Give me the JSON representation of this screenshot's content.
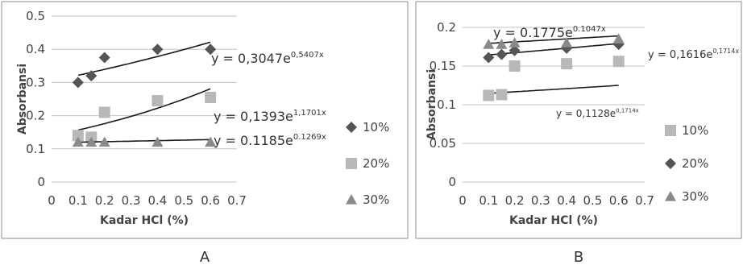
{
  "chart_data": [
    {
      "type": "scatter",
      "panel_label": "A",
      "xlabel": "Kadar HCl (%)",
      "ylabel": "Absorbansi",
      "xlim": [
        0,
        0.7
      ],
      "ylim": [
        0,
        0.5
      ],
      "x_ticks": [
        "0",
        "0.1",
        "0.2",
        "0.3",
        "0.4",
        "0.5",
        "0.6",
        "0.7"
      ],
      "y_ticks": [
        "0",
        "0.1",
        "0.2",
        "0.3",
        "0.4",
        "0.5"
      ],
      "grid": true,
      "legend_position": "right",
      "series": [
        {
          "name": "10%",
          "marker": "diamond",
          "color": "#555555",
          "x": [
            0.1,
            0.15,
            0.2,
            0.4,
            0.6
          ],
          "y": [
            0.3,
            0.32,
            0.375,
            0.4,
            0.4
          ],
          "trend": {
            "a": 0.3047,
            "b": 0.5407,
            "equation": "y = 0,3047e",
            "exponent": "0,5407x"
          }
        },
        {
          "name": "20%",
          "marker": "square",
          "color": "#b8b8b8",
          "x": [
            0.1,
            0.15,
            0.2,
            0.4,
            0.6
          ],
          "y": [
            0.14,
            0.135,
            0.21,
            0.245,
            0.255
          ],
          "trend": {
            "a": 0.1393,
            "b": 1.1701,
            "equation": "y = 0,1393e",
            "exponent": "1,1701x"
          }
        },
        {
          "name": "30%",
          "marker": "triangle",
          "color": "#8a8a8a",
          "x": [
            0.1,
            0.15,
            0.2,
            0.4,
            0.6
          ],
          "y": [
            0.12,
            0.12,
            0.12,
            0.12,
            0.12
          ],
          "trend": {
            "a": 0.1185,
            "b": 0.1269,
            "equation": "y = 0.1185e",
            "exponent": "0.1269x"
          }
        }
      ]
    },
    {
      "type": "scatter",
      "panel_label": "B",
      "xlabel": "Kadar HCl (%)",
      "ylabel": "Absorbansi",
      "xlim": [
        0,
        0.7
      ],
      "ylim": [
        0,
        0.2
      ],
      "x_ticks": [
        "0",
        "0.1",
        "0.2",
        "0.3",
        "0.4",
        "0.5",
        "0.6",
        "0.7"
      ],
      "y_ticks": [
        "0",
        "0.05",
        "0.1",
        "0.15",
        "0.2"
      ],
      "grid": true,
      "legend_position": "right",
      "series": [
        {
          "name": "10%",
          "marker": "square",
          "color": "#b8b8b8",
          "x": [
            0.1,
            0.15,
            0.2,
            0.4,
            0.6
          ],
          "y": [
            0.112,
            0.113,
            0.15,
            0.153,
            0.156
          ],
          "trend": {
            "a": 0.1128,
            "b": 0.1714,
            "equation": "y = 0,1128e",
            "exponent": "0,1714x"
          }
        },
        {
          "name": "20%",
          "marker": "diamond",
          "color": "#555555",
          "x": [
            0.1,
            0.15,
            0.2,
            0.4,
            0.6
          ],
          "y": [
            0.161,
            0.165,
            0.17,
            0.173,
            0.178
          ],
          "trend": {
            "a": 0.1616,
            "b": 0.1714,
            "equation": "y = 0,1616e",
            "exponent": "0,1714x"
          }
        },
        {
          "name": "30%",
          "marker": "triangle",
          "color": "#8a8a8a",
          "x": [
            0.1,
            0.15,
            0.2,
            0.4,
            0.6
          ],
          "y": [
            0.178,
            0.178,
            0.18,
            0.18,
            0.185
          ],
          "trend": {
            "a": 0.1775,
            "b": 0.1047,
            "equation": "y = 0.1775e",
            "exponent": "0.1047x"
          }
        }
      ]
    }
  ]
}
